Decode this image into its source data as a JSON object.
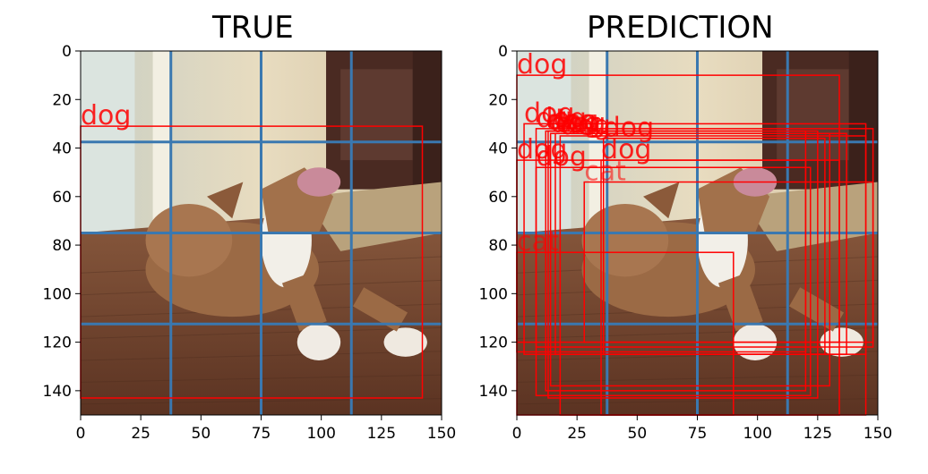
{
  "panels": [
    {
      "title": "TRUE",
      "xticks": [
        0,
        25,
        50,
        75,
        100,
        125,
        150
      ],
      "yticks": [
        0,
        20,
        40,
        60,
        80,
        100,
        120,
        140
      ],
      "xlim": [
        0,
        150
      ],
      "ylim": [
        150,
        0
      ],
      "grid_lines": [
        37.5,
        75,
        112.5
      ],
      "boxes": [
        {
          "label": "dog",
          "x1": 0,
          "y1": 31,
          "x2": 142,
          "y2": 143
        }
      ]
    },
    {
      "title": "PREDICTION",
      "xticks": [
        0,
        25,
        50,
        75,
        100,
        125,
        150
      ],
      "yticks": [
        0,
        20,
        40,
        60,
        80,
        100,
        120,
        140
      ],
      "xlim": [
        0,
        150
      ],
      "ylim": [
        150,
        0
      ],
      "grid_lines": [
        37.5,
        75,
        112.5
      ],
      "boxes": [
        {
          "label": "dog",
          "x1": 0,
          "y1": 10,
          "x2": 134,
          "y2": 120
        },
        {
          "label": "dog",
          "x1": 3,
          "y1": 30,
          "x2": 145,
          "y2": 125
        },
        {
          "label": "dog",
          "x1": 8,
          "y1": 32,
          "x2": 148,
          "y2": 122
        },
        {
          "label": "dog",
          "x1": 12,
          "y1": 33,
          "x2": 120,
          "y2": 140
        },
        {
          "label": "dog",
          "x1": 13,
          "y1": 33,
          "x2": 125,
          "y2": 143
        },
        {
          "label": "dog",
          "x1": 14,
          "y1": 34,
          "x2": 130,
          "y2": 138
        },
        {
          "label": "dog",
          "x1": 16,
          "y1": 34,
          "x2": 137,
          "y2": 125
        },
        {
          "label": "dog",
          "x1": 18,
          "y1": 35,
          "x2": 145,
          "y2": 150
        },
        {
          "label": "dog",
          "x1": 36,
          "y1": 36,
          "x2": 128,
          "y2": 125
        },
        {
          "label": "dog",
          "x1": 35,
          "y1": 45,
          "x2": 134,
          "y2": 150
        },
        {
          "label": "dog",
          "x1": 0,
          "y1": 45,
          "x2": 120,
          "y2": 124
        },
        {
          "label": "dog",
          "x1": 8,
          "y1": 48,
          "x2": 122,
          "y2": 142
        },
        {
          "label": "cat",
          "x1": 28,
          "y1": 54,
          "x2": 148,
          "y2": 120
        },
        {
          "label": "cat",
          "x1": 0,
          "y1": 83,
          "x2": 90,
          "y2": 150
        }
      ]
    }
  ],
  "colors": {
    "box": "#ff0000",
    "grid": "#3a78b0"
  }
}
